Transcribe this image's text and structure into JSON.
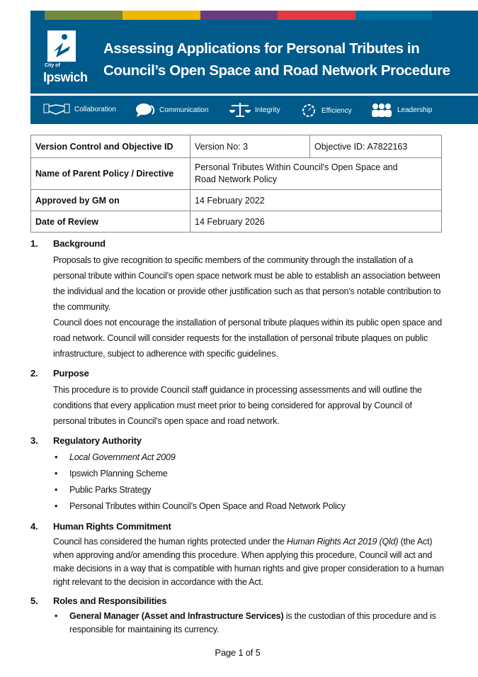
{
  "header": {
    "title_line1": "Assessing Applications for Personal Tributes in",
    "title_line2": "Council’s Open Space and Road Network Procedure",
    "logo_text": "City of Ipswich",
    "logo_small": "City of",
    "logo_big": "Ipswich",
    "stripe_colors": [
      "#748839",
      "#efb700",
      "#6a3b7e",
      "#e23a43",
      "#006f9f"
    ],
    "background": "#005b8a"
  },
  "values": [
    {
      "icon": "handshake-icon",
      "label": "Collaboration"
    },
    {
      "icon": "speech-bubble-icon",
      "label": "Communication"
    },
    {
      "icon": "scales-icon",
      "label": "Integrity"
    },
    {
      "icon": "gear-icon",
      "label": "Efficiency"
    },
    {
      "icon": "people-icon",
      "label": "Leadership"
    }
  ],
  "table": {
    "rows": [
      {
        "key": "Version Control and Objective ID",
        "v1": "Version No: 3",
        "v2": "Objective ID: A7822163"
      },
      {
        "key": "Name of Parent Policy / Directive",
        "v1": "Personal Tributes Within Council's Open Space and Road Network Policy"
      },
      {
        "key": "Approved by GM on",
        "v1": "14 February 2022"
      },
      {
        "key": "Date of Review",
        "v1": "14 February 2026"
      }
    ]
  },
  "sections": [
    {
      "num": "1.",
      "title": "Background",
      "paras": [
        "Proposals to give recognition to specific members of the community through the installation of a personal tribute within Council’s open space network must be able to establish an association between the individual and the location or provide other justification such as that person’s notable contribution to the community.",
        "Council does not encourage the installation of personal tribute plaques within its public open space and road network.  Council will consider requests for the installation of personal tribute plaques on public infrastructure, subject to adherence with specific guidelines."
      ]
    },
    {
      "num": "2.",
      "title": "Purpose",
      "paras": [
        "This procedure is to provide Council staff guidance in processing assessments and will outline the conditions that every application must meet prior to being considered for approval by Council of personal tributes in Council’s open space and road network."
      ]
    },
    {
      "num": "3.",
      "title": "Regulatory Authority",
      "bullets": [
        "Local Government Act 2009",
        "Ipswich Planning Scheme",
        "Public Parks Strategy",
        "Personal Tributes within Council’s Open Space and Road Network Policy"
      ]
    },
    {
      "num": "4.",
      "title": "Human Rights Commitment",
      "p_before": "Council has considered the human rights protected under the ",
      "p_italic": "Human Rights Act 2019 (Qld)",
      "p_after": " (the Act) when approving and/or amending this procedure.  When applying this procedure, Council will act and make decisions in a way that is compatible with human rights and give proper consideration to a human right relevant to the decision in accordance with the Act."
    },
    {
      "num": "5.",
      "title": "Roles and Responsibilities",
      "bullet_bold": "General Manager (Asset and Infrastructure Services)",
      "bullet_rest": " is the custodian of this procedure and is responsible for maintaining its currency."
    }
  ],
  "footer": {
    "page": "Page 1 of 5"
  }
}
